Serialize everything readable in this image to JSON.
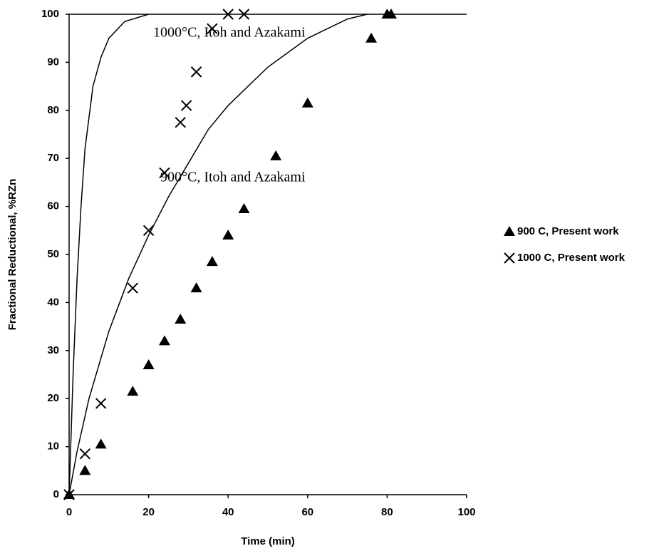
{
  "chart_data": {
    "type": "scatter",
    "xlabel": "Time (min)",
    "ylabel": "Fractional Reductional, %RZn",
    "xlim": [
      0,
      100
    ],
    "xticks": [
      0,
      20,
      40,
      60,
      80,
      100
    ],
    "ylim": [
      0,
      100
    ],
    "yticks": [
      0,
      10,
      20,
      30,
      40,
      50,
      60,
      70,
      80,
      90,
      100
    ],
    "grid": false,
    "legend": "right",
    "series": [
      {
        "name": "900 C, Present work",
        "marker": "triangle",
        "color": "#000000",
        "x": [
          0,
          4,
          8,
          16,
          20,
          24,
          28,
          32,
          36,
          40,
          44,
          52,
          60,
          76,
          80,
          81
        ],
        "values": [
          0,
          5,
          10.5,
          21.5,
          27,
          32,
          36.5,
          43,
          48.5,
          54,
          59.5,
          70.5,
          81.5,
          95,
          100,
          100
        ]
      },
      {
        "name": "1000 C, Present work",
        "marker": "x",
        "color": "#000000",
        "x": [
          0,
          4,
          8,
          16,
          20,
          24,
          28,
          29.5,
          32,
          36,
          40,
          44
        ],
        "values": [
          0,
          8.5,
          19,
          43,
          55,
          67,
          77.5,
          81,
          88,
          97,
          100,
          100
        ]
      }
    ],
    "curves": [
      {
        "label": "1000°C, Itoh and Azakami",
        "color": "#000000",
        "x": [
          0,
          1,
          2,
          3,
          4,
          6,
          8,
          10,
          14,
          20
        ],
        "values": [
          0,
          25,
          45,
          60,
          72,
          85,
          91,
          95,
          98.5,
          100
        ]
      },
      {
        "label": "900°C, Itoh and Azakami",
        "color": "#000000",
        "x": [
          0,
          2,
          5,
          10,
          15,
          20,
          25,
          30,
          35,
          40,
          50,
          60,
          70,
          75
        ],
        "values": [
          0,
          9,
          20,
          34,
          45,
          54,
          62,
          69,
          76,
          81,
          89,
          95,
          99,
          100
        ]
      }
    ]
  }
}
